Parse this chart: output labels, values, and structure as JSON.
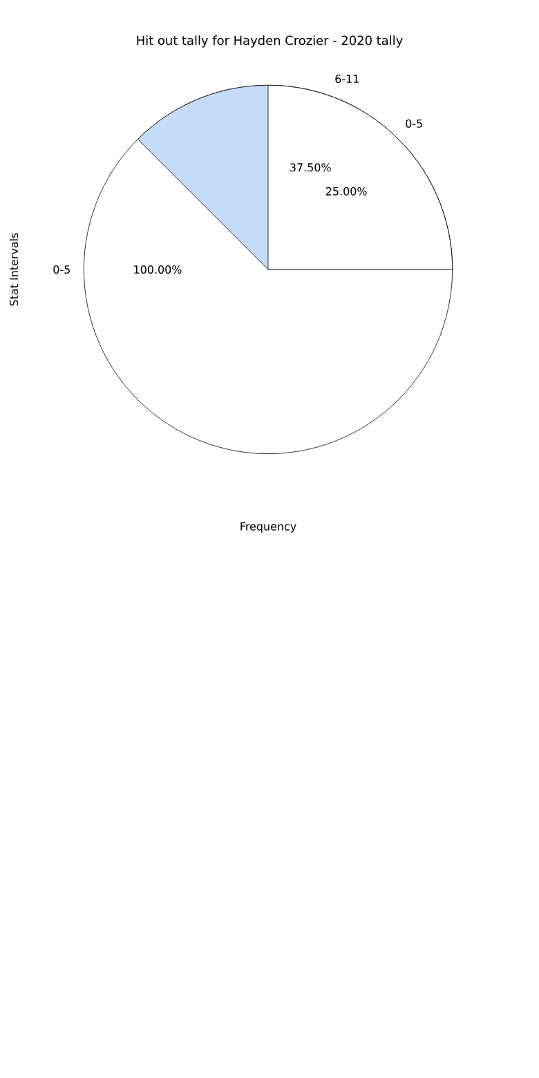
{
  "chart_data": {
    "type": "pie",
    "title": "Hit out tally for Hayden Crozier - 2020 tally",
    "xlabel": "Frequency",
    "ylabel": "Stat Intervals",
    "categories": [
      "0-5",
      "6-11",
      "0-5"
    ],
    "values": [
      25,
      37.5,
      100
    ],
    "value_labels": [
      "25.00%",
      "37.50%",
      "100.00%"
    ],
    "colors": [
      "#ffffff",
      "#c6dbf7",
      "#ffffff"
    ]
  }
}
